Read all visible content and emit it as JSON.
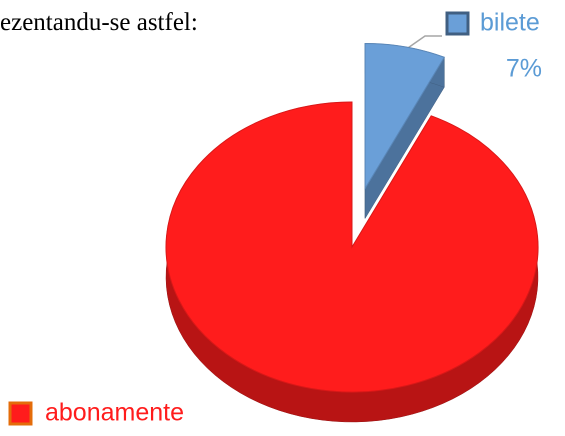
{
  "document_text": "ezentandu-se astfel:",
  "chart_data": {
    "type": "pie",
    "categories": [
      "bilete",
      "abonamente"
    ],
    "values": [
      7,
      93
    ],
    "value_labels": [
      "7%",
      null
    ],
    "colors": [
      "#6a9fd8",
      "#ff1c1c"
    ],
    "explode": [
      true,
      false
    ]
  }
}
